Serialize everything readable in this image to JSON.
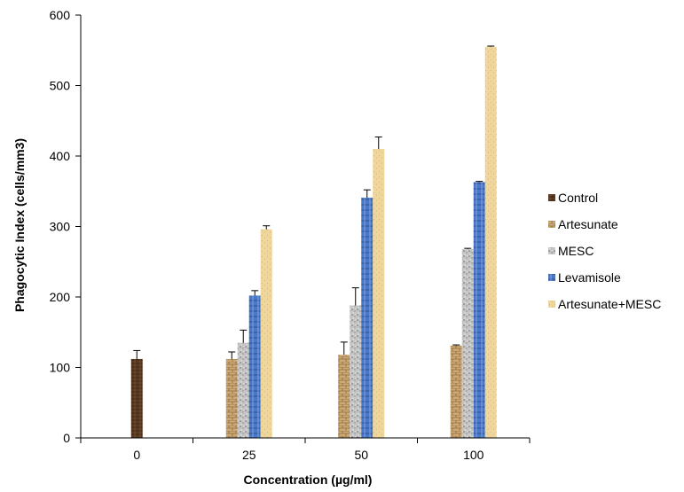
{
  "chart_data": {
    "type": "bar",
    "xlabel": "Concentration (µg/ml)",
    "ylabel": "Phagocytic Index (cells/mm3)",
    "ylim": [
      0,
      600
    ],
    "yticks": [
      "0",
      "100",
      "200",
      "300",
      "400",
      "500",
      "600"
    ],
    "categories": [
      "0",
      "25",
      "50",
      "100"
    ],
    "legend_position": "right",
    "series": [
      {
        "name": "Control",
        "color": "#5a3a22",
        "pattern": "dark-wood",
        "values": [
          112,
          null,
          null,
          null
        ],
        "errors": [
          12,
          null,
          null,
          null
        ]
      },
      {
        "name": "Artesunate",
        "color": "#c8a26a",
        "pattern": "brick",
        "values": [
          null,
          112,
          118,
          131
        ],
        "errors": [
          null,
          10,
          18,
          1
        ]
      },
      {
        "name": "MESC",
        "color": "#b4b4b4",
        "pattern": "granite",
        "values": [
          null,
          135,
          188,
          268
        ],
        "errors": [
          null,
          18,
          25,
          1
        ]
      },
      {
        "name": "Levamisole",
        "color": "#4a78c8",
        "pattern": "blue-weave",
        "values": [
          null,
          202,
          341,
          363
        ],
        "errors": [
          null,
          7,
          11,
          1
        ]
      },
      {
        "name": "Artesunate+MESC",
        "color": "#ecd294",
        "pattern": "sand",
        "values": [
          null,
          296,
          410,
          555
        ],
        "errors": [
          null,
          5,
          17,
          1
        ]
      }
    ]
  }
}
